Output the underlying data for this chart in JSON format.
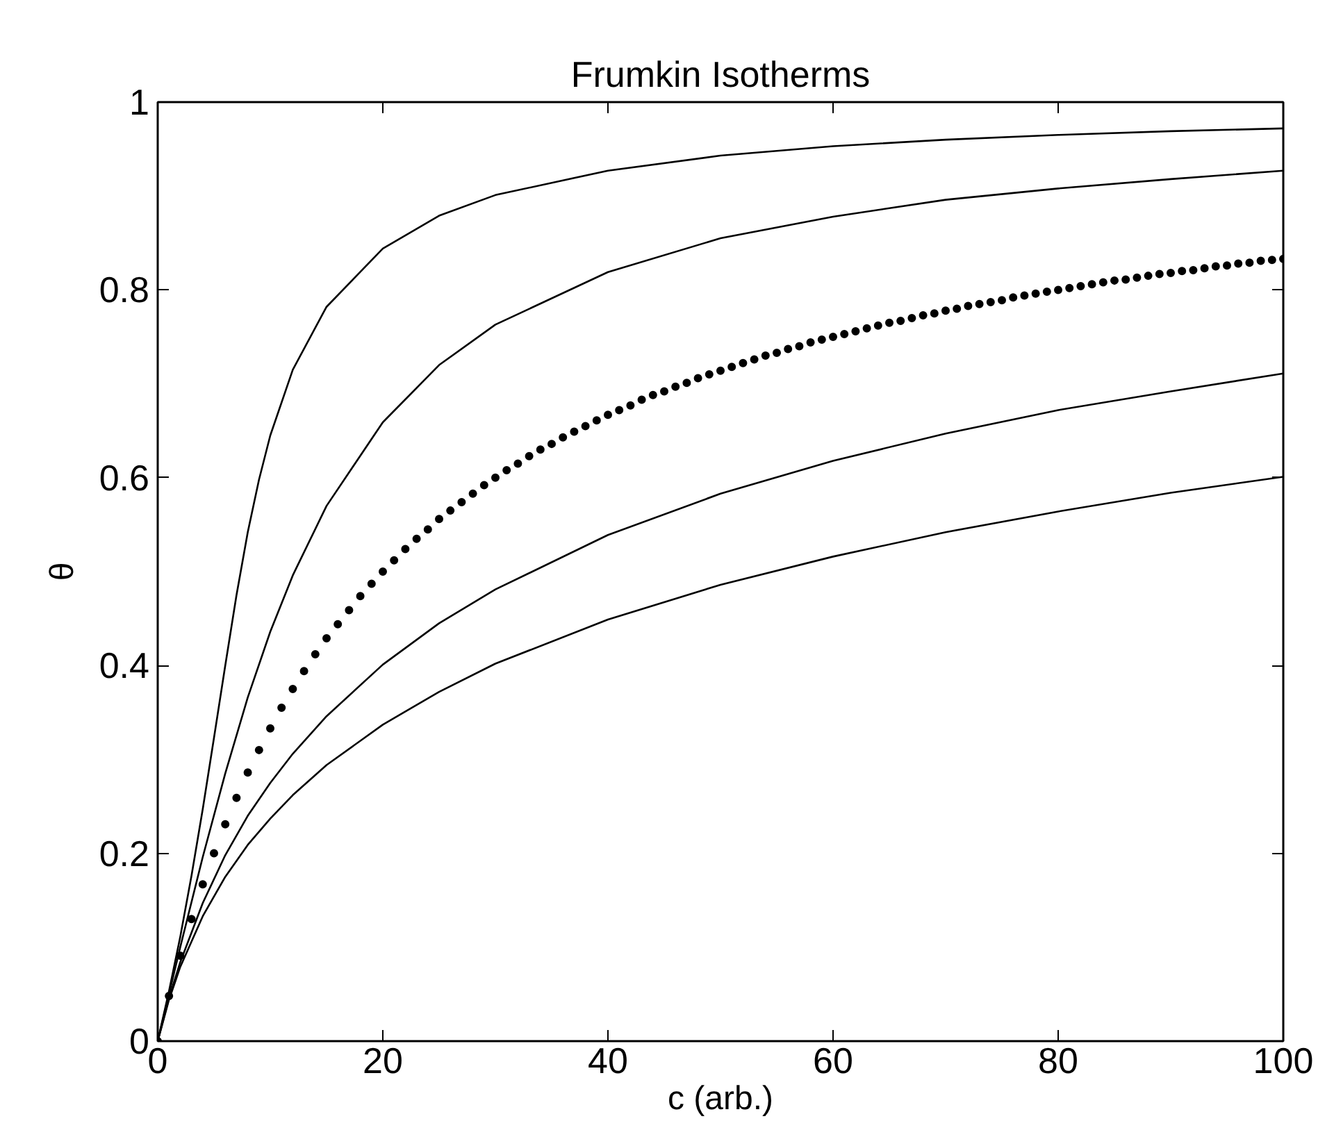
{
  "chart_data": {
    "type": "line",
    "title": "Frumkin Isotherms",
    "xlabel": "c (arb.)",
    "ylabel": "θ",
    "xlim": [
      0,
      100
    ],
    "ylim": [
      0,
      1
    ],
    "xticks": [
      0,
      20,
      40,
      60,
      80,
      100
    ],
    "yticks": [
      0,
      {
        "value": 0.2,
        "label": "0.2"
      },
      {
        "value": 0.4,
        "label": "0.4"
      },
      {
        "value": 0.6,
        "label": "0.6"
      },
      {
        "value": 0.8,
        "label": "0.8"
      },
      1
    ],
    "grid": false,
    "marker": "none",
    "line_style": "solid",
    "series": [
      {
        "color": "#000000",
        "x": [
          0,
          1,
          2,
          3,
          4,
          5,
          6,
          7,
          8,
          9,
          10,
          12,
          15,
          20,
          25,
          30,
          40,
          50,
          60,
          70,
          80,
          90,
          100
        ],
        "values": [
          0,
          0.053,
          0.111,
          0.176,
          0.247,
          0.323,
          0.4,
          0.475,
          0.542,
          0.598,
          0.645,
          0.715,
          0.782,
          0.844,
          0.879,
          0.901,
          0.927,
          0.943,
          0.953,
          0.96,
          0.965,
          0.969,
          0.972
        ]
      },
      {
        "color": "#000000",
        "x": [
          0,
          1,
          2,
          4,
          6,
          8,
          10,
          12,
          15,
          20,
          25,
          30,
          40,
          50,
          60,
          70,
          80,
          90,
          100
        ],
        "values": [
          0,
          0.05,
          0.1,
          0.196,
          0.285,
          0.366,
          0.436,
          0.496,
          0.57,
          0.659,
          0.72,
          0.763,
          0.819,
          0.855,
          0.878,
          0.896,
          0.908,
          0.918,
          0.927
        ]
      },
      {
        "type": "scatter",
        "marker": "circle",
        "color": "#000000",
        "x": [
          0,
          1,
          2,
          3,
          4,
          5,
          6,
          7,
          8,
          9,
          10,
          11,
          12,
          13,
          14,
          15,
          16,
          17,
          18,
          19,
          20,
          21,
          22,
          23,
          24,
          25,
          26,
          27,
          28,
          29,
          30,
          31,
          32,
          33,
          34,
          35,
          36,
          37,
          38,
          39,
          40,
          41,
          42,
          43,
          44,
          45,
          46,
          47,
          48,
          49,
          50,
          51,
          52,
          53,
          54,
          55,
          56,
          57,
          58,
          59,
          60,
          61,
          62,
          63,
          64,
          65,
          66,
          67,
          68,
          69,
          70,
          71,
          72,
          73,
          74,
          75,
          76,
          77,
          78,
          79,
          80,
          81,
          82,
          83,
          84,
          85,
          86,
          87,
          88,
          89,
          90,
          91,
          92,
          93,
          94,
          95,
          96,
          97,
          98,
          99,
          100
        ],
        "values": [
          0,
          0.048,
          0.091,
          0.13,
          0.167,
          0.2,
          0.231,
          0.259,
          0.286,
          0.31,
          0.333,
          0.355,
          0.375,
          0.394,
          0.412,
          0.429,
          0.444,
          0.459,
          0.474,
          0.487,
          0.5,
          0.512,
          0.524,
          0.535,
          0.545,
          0.556,
          0.565,
          0.574,
          0.583,
          0.592,
          0.6,
          0.608,
          0.615,
          0.623,
          0.63,
          0.636,
          0.643,
          0.649,
          0.655,
          0.661,
          0.667,
          0.672,
          0.677,
          0.683,
          0.688,
          0.692,
          0.697,
          0.701,
          0.706,
          0.71,
          0.714,
          0.718,
          0.722,
          0.726,
          0.73,
          0.733,
          0.737,
          0.74,
          0.744,
          0.747,
          0.75,
          0.753,
          0.756,
          0.759,
          0.762,
          0.765,
          0.767,
          0.77,
          0.773,
          0.775,
          0.778,
          0.78,
          0.783,
          0.785,
          0.787,
          0.789,
          0.792,
          0.794,
          0.796,
          0.798,
          0.8,
          0.802,
          0.804,
          0.806,
          0.808,
          0.81,
          0.811,
          0.813,
          0.815,
          0.817,
          0.818,
          0.82,
          0.821,
          0.823,
          0.825,
          0.826,
          0.828,
          0.829,
          0.831,
          0.832,
          0.833
        ]
      },
      {
        "color": "#000000",
        "x": [
          0,
          1,
          2,
          4,
          6,
          8,
          10,
          12,
          15,
          20,
          25,
          30,
          40,
          50,
          60,
          70,
          80,
          90,
          100
        ],
        "values": [
          0,
          0.046,
          0.084,
          0.147,
          0.198,
          0.24,
          0.275,
          0.306,
          0.346,
          0.401,
          0.445,
          0.481,
          0.539,
          0.583,
          0.618,
          0.647,
          0.672,
          0.692,
          0.711
        ]
      },
      {
        "color": "#000000",
        "x": [
          0,
          1,
          2,
          4,
          6,
          8,
          10,
          12,
          15,
          20,
          25,
          30,
          40,
          50,
          60,
          70,
          80,
          90,
          100
        ],
        "values": [
          0,
          0.044,
          0.079,
          0.133,
          0.175,
          0.209,
          0.237,
          0.262,
          0.294,
          0.337,
          0.372,
          0.402,
          0.449,
          0.486,
          0.516,
          0.542,
          0.564,
          0.584,
          0.601
        ]
      }
    ]
  }
}
